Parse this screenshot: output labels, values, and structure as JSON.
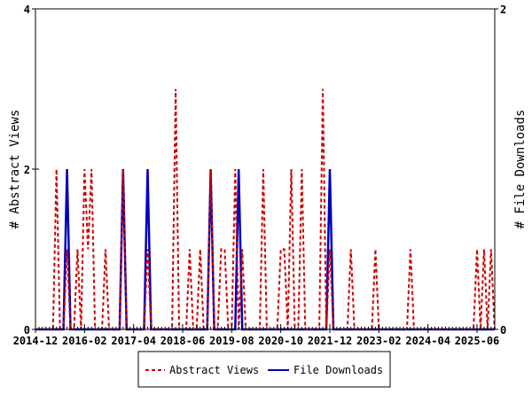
{
  "chart_data": {
    "type": "line",
    "title": "",
    "xlabel": "",
    "ylabel_left": "# Abstract Views",
    "ylabel_right": "# File Downloads",
    "x_start": "2014-12",
    "x_end": "2025-11",
    "x_tick_labels": [
      "2014-12",
      "2016-02",
      "2017-04",
      "2018-06",
      "2019-08",
      "2020-10",
      "2021-12",
      "2023-02",
      "2024-04",
      "2025-06"
    ],
    "ylim_left": [
      0,
      4
    ],
    "ylim_right": [
      0,
      2
    ],
    "y_ticks_left": [
      "0",
      "2",
      "4"
    ],
    "y_ticks_right": [
      "0",
      "2"
    ],
    "grid": false,
    "legend_position": "bottom",
    "series": [
      {
        "name": "Abstract Views",
        "axis": "left",
        "color": "#cc0000",
        "style": "dashed",
        "values": [
          0,
          0,
          0,
          0,
          0,
          0,
          2,
          0,
          0,
          1,
          0,
          0,
          1,
          0,
          2,
          1,
          2,
          0,
          0,
          0,
          1,
          0,
          0,
          0,
          0,
          2,
          0,
          0,
          0,
          0,
          0,
          0,
          1,
          0,
          0,
          0,
          0,
          0,
          0,
          0,
          3,
          0,
          0,
          0,
          1,
          0,
          0,
          1,
          0,
          0,
          2,
          0,
          0,
          1,
          1,
          0,
          0,
          2,
          0,
          1,
          0,
          0,
          0,
          0,
          0,
          2,
          0,
          0,
          0,
          0,
          1,
          1,
          0,
          2,
          0,
          0,
          2,
          0,
          0,
          0,
          0,
          0,
          3,
          0,
          1,
          0,
          0,
          0,
          0,
          0,
          1,
          0,
          0,
          0,
          0,
          0,
          0,
          1,
          0,
          0,
          0,
          0,
          0,
          0,
          0,
          0,
          0,
          1,
          0,
          0,
          0,
          0,
          0,
          0,
          0,
          0,
          0,
          0,
          0,
          0,
          0,
          0,
          0,
          0,
          0,
          0,
          1,
          0,
          1,
          0,
          1,
          0
        ]
      },
      {
        "name": "File Downloads",
        "axis": "right",
        "color": "#0000bb",
        "style": "solid",
        "values": [
          0,
          0,
          0,
          0,
          0,
          0,
          0,
          0,
          0,
          1,
          0,
          0,
          0,
          0,
          0,
          0,
          0,
          0,
          0,
          0,
          0,
          0,
          0,
          0,
          0,
          1,
          0,
          0,
          0,
          0,
          0,
          0,
          1,
          0,
          0,
          0,
          0,
          0,
          0,
          0,
          0,
          0,
          0,
          0,
          0,
          0,
          0,
          0,
          0,
          0,
          1,
          0,
          0,
          0,
          0,
          0,
          0,
          0,
          1,
          0,
          0,
          0,
          0,
          0,
          0,
          0,
          0,
          0,
          0,
          0,
          0,
          0,
          0,
          0,
          0,
          0,
          0,
          0,
          0,
          0,
          0,
          0,
          0,
          0,
          1,
          0,
          0,
          0,
          0,
          0,
          0,
          0,
          0,
          0,
          0,
          0,
          0,
          0,
          0,
          0,
          0,
          0,
          0,
          0,
          0,
          0,
          0,
          0,
          0,
          0,
          0,
          0,
          0,
          0,
          0,
          0,
          0,
          0,
          0,
          0,
          0,
          0,
          0,
          0,
          0,
          0,
          0,
          0,
          0,
          0,
          0,
          0
        ]
      }
    ]
  }
}
